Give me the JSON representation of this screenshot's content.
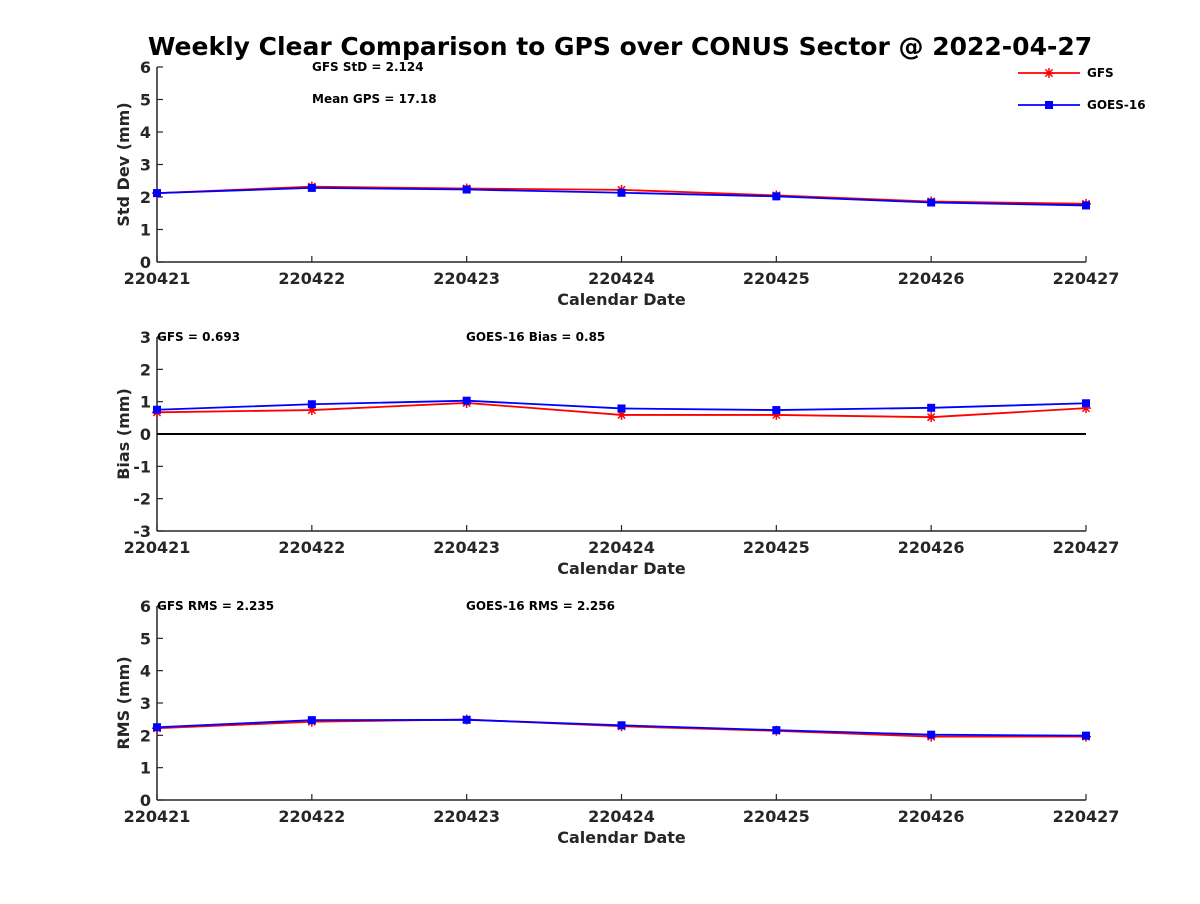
{
  "chart_data": {
    "type": "line",
    "title": "Weekly Clear Comparison to GPS over CONUS Sector @ 2022-04-27",
    "categories": [
      "220421",
      "220422",
      "220423",
      "220424",
      "220425",
      "220426",
      "220427"
    ],
    "legend": {
      "placement": "top-right",
      "entries": [
        {
          "name": "GFS",
          "color": "#ff0000",
          "marker": "asterisk"
        },
        {
          "name": "GOES-16",
          "color": "#0000ff",
          "marker": "square"
        }
      ]
    },
    "panels": [
      {
        "id": "std",
        "ylabel": "Std Dev (mm)",
        "xlabel": "Calendar Date",
        "ylim": [
          0,
          6
        ],
        "yticks": [
          "0",
          "1",
          "2",
          "3",
          "4",
          "5",
          "6"
        ],
        "annotations": [
          "GFS StD = 2.124",
          "Mean GPS = 17.18"
        ],
        "series": [
          {
            "name": "GFS",
            "color": "#ff0000",
            "values": [
              2.12,
              2.32,
              2.26,
              2.22,
              2.05,
              1.86,
              1.79
            ]
          },
          {
            "name": "GOES-16",
            "color": "#0000ff",
            "values": [
              2.12,
              2.28,
              2.23,
              2.13,
              2.02,
              1.83,
              1.74
            ]
          }
        ]
      },
      {
        "id": "bias",
        "ylabel": "Bias (mm)",
        "xlabel": "Calendar Date",
        "ylim": [
          -3,
          3
        ],
        "yticks": [
          "-3",
          "-2",
          "-1",
          "0",
          "1",
          "2",
          "3"
        ],
        "zero_line": true,
        "annotations": [
          "GFS = 0.693",
          "GOES-16 Bias  = 0.85"
        ],
        "series": [
          {
            "name": "GFS",
            "color": "#ff0000",
            "values": [
              0.67,
              0.74,
              0.96,
              0.59,
              0.59,
              0.52,
              0.8
            ]
          },
          {
            "name": "GOES-16",
            "color": "#0000ff",
            "values": [
              0.75,
              0.92,
              1.03,
              0.79,
              0.74,
              0.81,
              0.95
            ]
          }
        ]
      },
      {
        "id": "rms",
        "ylabel": "RMS (mm)",
        "xlabel": "Calendar Date",
        "ylim": [
          0,
          6
        ],
        "yticks": [
          "0",
          "1",
          "2",
          "3",
          "4",
          "5",
          "6"
        ],
        "annotations": [
          "GFS RMS = 2.235",
          "GOES-16 RMS = 2.256"
        ],
        "series": [
          {
            "name": "GFS",
            "color": "#ff0000",
            "values": [
              2.22,
              2.42,
              2.49,
              2.28,
              2.14,
              1.96,
              1.96
            ]
          },
          {
            "name": "GOES-16",
            "color": "#0000ff",
            "values": [
              2.25,
              2.47,
              2.48,
              2.31,
              2.16,
              2.02,
              1.99
            ]
          }
        ]
      }
    ]
  }
}
